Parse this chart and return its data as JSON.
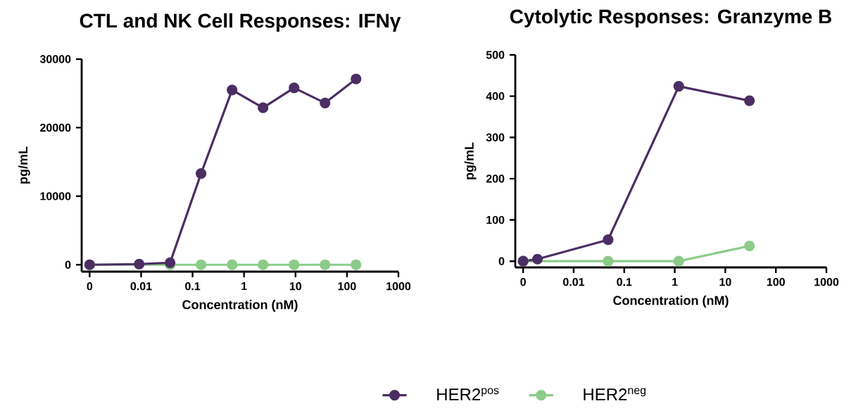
{
  "chart_data": [
    {
      "type": "line",
      "title": "CTL and NK Cell Responses: IFNγ",
      "xlabel": "Concentration (nM)",
      "ylabel": "pg/mL",
      "log": "x",
      "marker": "circle",
      "legend": "bottom",
      "xlim": [
        0.0007,
        1000
      ],
      "ylim": [
        -1000,
        30000
      ],
      "xticks": [
        {
          "value": 0.001,
          "label": "0"
        },
        0.01,
        0.1,
        1,
        10,
        100,
        1000
      ],
      "yticks": [
        0,
        10000,
        20000,
        30000
      ],
      "series": [
        {
          "name": "HER2$^{pos}$",
          "color": "#4b2e63",
          "x": [
            0.001,
            0.00916,
            0.0366,
            0.146,
            0.586,
            2.34,
            9.375,
            37.5,
            150
          ],
          "values": [
            0,
            100,
            300,
            13300,
            25500,
            22900,
            25800,
            23600,
            27100
          ]
        },
        {
          "name": "HER2$^{neg}$",
          "color": "#8ccb8a",
          "x": [
            0.001,
            0.00916,
            0.0366,
            0.146,
            0.586,
            2.34,
            9.375,
            37.5,
            150
          ],
          "values": [
            0,
            null,
            0,
            0,
            0,
            0,
            0,
            0,
            0
          ]
        }
      ]
    },
    {
      "type": "line",
      "title": "Cytolytic Responses: Granzyme B",
      "xlabel": "Concentration (nM)",
      "ylabel": "pg/mL",
      "log": "x",
      "marker": "circle",
      "xlim": [
        0.0007,
        1000
      ],
      "ylim": [
        -15,
        500
      ],
      "xticks": [
        {
          "value": 0.001,
          "label": "0"
        },
        0.01,
        0.1,
        1,
        10,
        100,
        1000
      ],
      "yticks": [
        0,
        100,
        200,
        300,
        400,
        500
      ],
      "series": [
        {
          "color": "#4b2e63",
          "x": [
            0.001,
            0.00192,
            0.048,
            1.2,
            30
          ],
          "values": [
            0,
            5,
            52,
            424,
            389
          ]
        },
        {
          "color": "#8ccb8a",
          "x": [
            0.001,
            0.00192,
            0.048,
            1.2,
            30
          ],
          "values": [
            0,
            null,
            0,
            0,
            37
          ]
        }
      ]
    }
  ]
}
